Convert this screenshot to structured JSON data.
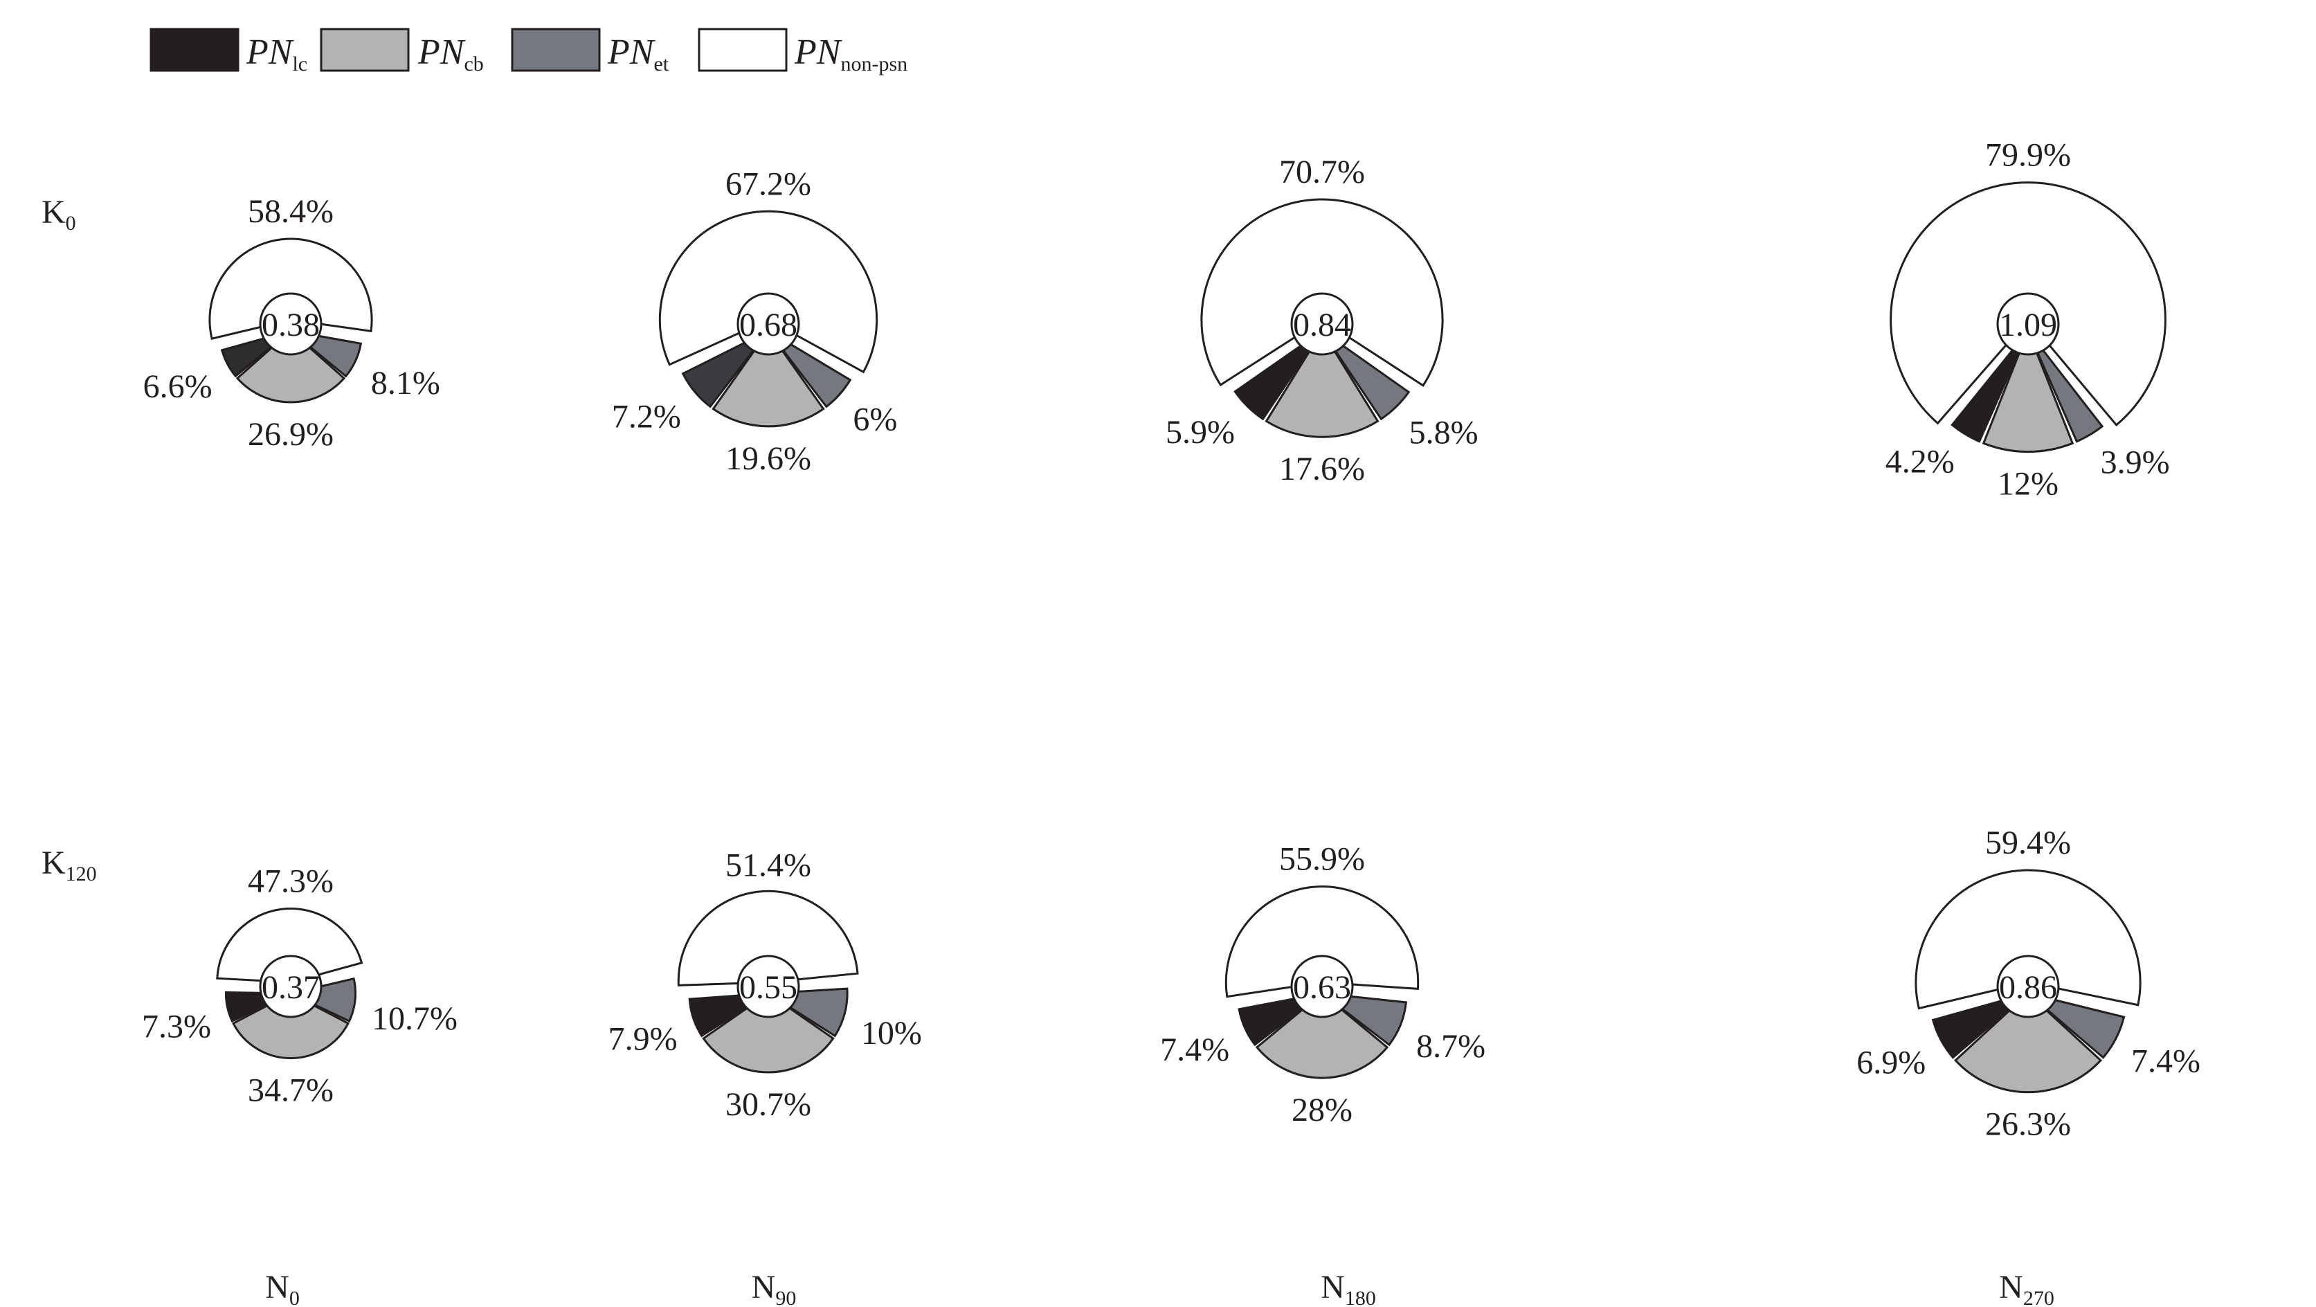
{
  "chart_data": {
    "type": "pie",
    "legend": {
      "placement": "top-left",
      "entries": [
        {
          "base": "PN",
          "sub": "lc",
          "color": "#231f20"
        },
        {
          "base": "PN",
          "sub": "cb",
          "color": "#b3b3b3"
        },
        {
          "base": "PN",
          "sub": "et",
          "color": "#767880"
        },
        {
          "base": "PN",
          "sub": "non-psn",
          "color": "#ffffff"
        }
      ]
    },
    "columns": [
      {
        "base": "N",
        "sub": "0"
      },
      {
        "base": "N",
        "sub": "90"
      },
      {
        "base": "N",
        "sub": "180"
      },
      {
        "base": "N",
        "sub": "270"
      }
    ],
    "rows": [
      {
        "base": "K",
        "sub": "0"
      },
      {
        "base": "K",
        "sub": "120"
      }
    ],
    "panels": [
      {
        "row": 0,
        "col": 0,
        "center_label": "0.38",
        "lc_color": "#2e2d30",
        "slices": {
          "non_psn": 58.4,
          "cb": 26.9,
          "lc": 6.6,
          "et": 8.1
        },
        "labels": {
          "non_psn": "58.4%",
          "cb": "26.9%",
          "lc": "6.6%",
          "et": "8.1%"
        }
      },
      {
        "row": 0,
        "col": 1,
        "center_label": "0.68",
        "lc_color": "#3a3b3f",
        "slices": {
          "non_psn": 67.2,
          "cb": 19.6,
          "lc": 7.2,
          "et": 6
        },
        "labels": {
          "non_psn": "67.2%",
          "cb": "19.6%",
          "lc": "7.2%",
          "et": "6%"
        }
      },
      {
        "row": 0,
        "col": 2,
        "center_label": "0.84",
        "lc_color": "#231f20",
        "slices": {
          "non_psn": 70.7,
          "cb": 17.6,
          "lc": 5.9,
          "et": 5.8
        },
        "labels": {
          "non_psn": "70.7%",
          "cb": "17.6%",
          "lc": "5.9%",
          "et": "5.8%"
        }
      },
      {
        "row": 0,
        "col": 3,
        "center_label": "1.09",
        "lc_color": "#231f20",
        "slices": {
          "non_psn": 79.9,
          "cb": 12,
          "lc": 4.2,
          "et": 3.9
        },
        "labels": {
          "non_psn": "79.9%",
          "cb": "12%",
          "lc": "4.2%",
          "et": "3.9%"
        }
      },
      {
        "row": 1,
        "col": 0,
        "center_label": "0.37",
        "lc_color": "#231f20",
        "slices": {
          "non_psn": 47.3,
          "cb": 34.7,
          "lc": 7.3,
          "et": 10.7
        },
        "labels": {
          "non_psn": "47.3%",
          "cb": "34.7%",
          "lc": "7.3%",
          "et": "10.7%"
        }
      },
      {
        "row": 1,
        "col": 1,
        "center_label": "0.55",
        "lc_color": "#231f20",
        "slices": {
          "non_psn": 51.4,
          "cb": 30.7,
          "lc": 7.9,
          "et": 10
        },
        "labels": {
          "non_psn": "51.4%",
          "cb": "30.7%",
          "lc": "7.9%",
          "et": "10%"
        }
      },
      {
        "row": 1,
        "col": 2,
        "center_label": "0.63",
        "lc_color": "#231f20",
        "slices": {
          "non_psn": 55.9,
          "cb": 28,
          "lc": 7.4,
          "et": 8.7
        },
        "labels": {
          "non_psn": "55.9%",
          "cb": "28%",
          "lc": "7.4%",
          "et": "8.7%"
        }
      },
      {
        "row": 1,
        "col": 3,
        "center_label": "0.86",
        "lc_color": "#231f20",
        "slices": {
          "non_psn": 59.4,
          "cb": 26.3,
          "lc": 6.9,
          "et": 7.4
        },
        "labels": {
          "non_psn": "59.4%",
          "cb": "26.3%",
          "lc": "6.9%",
          "et": "7.4%"
        }
      }
    ]
  }
}
